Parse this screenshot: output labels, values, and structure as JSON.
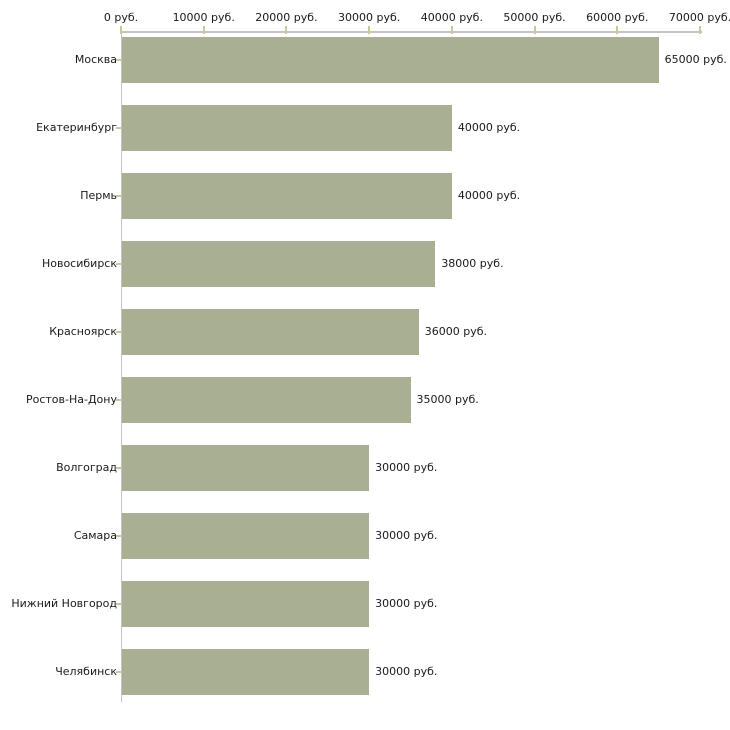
{
  "page": {
    "background_color": "#ffffff"
  },
  "chart_data": {
    "type": "bar",
    "orientation": "horizontal",
    "title": "",
    "xlabel": "",
    "ylabel": "",
    "grid": false,
    "legend": false,
    "unit_suffix": " руб.",
    "xlim": [
      0,
      70000
    ],
    "x_ticks": [
      {
        "value": 0,
        "label": "0 руб."
      },
      {
        "value": 10000,
        "label": "10000 руб."
      },
      {
        "value": 20000,
        "label": "20000 руб."
      },
      {
        "value": 30000,
        "label": "30000 руб."
      },
      {
        "value": 40000,
        "label": "40000 руб."
      },
      {
        "value": 50000,
        "label": "50000 руб."
      },
      {
        "value": 60000,
        "label": "60000 руб."
      },
      {
        "value": 70000,
        "label": "70000 руб."
      }
    ],
    "categories": [
      "Москва",
      "Екатеринбург",
      "Пермь",
      "Новосибирск",
      "Красноярск",
      "Ростов-На-Дону",
      "Волгоград",
      "Самара",
      "Нижний Новгород",
      "Челябинск"
    ],
    "values": [
      65000,
      40000,
      40000,
      38000,
      36000,
      35000,
      30000,
      30000,
      30000,
      30000
    ],
    "bars": [
      {
        "category": "Москва",
        "value": 65000,
        "value_label": "65000 руб."
      },
      {
        "category": "Екатеринбург",
        "value": 40000,
        "value_label": "40000 руб."
      },
      {
        "category": "Пермь",
        "value": 40000,
        "value_label": "40000 руб."
      },
      {
        "category": "Новосибирск",
        "value": 38000,
        "value_label": "38000 руб."
      },
      {
        "category": "Красноярск",
        "value": 36000,
        "value_label": "36000 руб."
      },
      {
        "category": "Ростов-На-Дону",
        "value": 35000,
        "value_label": "35000 руб."
      },
      {
        "category": "Волгоград",
        "value": 30000,
        "value_label": "30000 руб."
      },
      {
        "category": "Самара",
        "value": 30000,
        "value_label": "30000 руб."
      },
      {
        "category": "Нижний Новгород",
        "value": 30000,
        "value_label": "30000 руб."
      },
      {
        "category": "Челябинск",
        "value": 30000,
        "value_label": "30000 руб."
      }
    ],
    "colors": {
      "bar_fill": "#a8af93",
      "axis_line": "#c4c4c4",
      "tick_mark": "#c9c99c",
      "text": "#1a1a1a"
    }
  }
}
